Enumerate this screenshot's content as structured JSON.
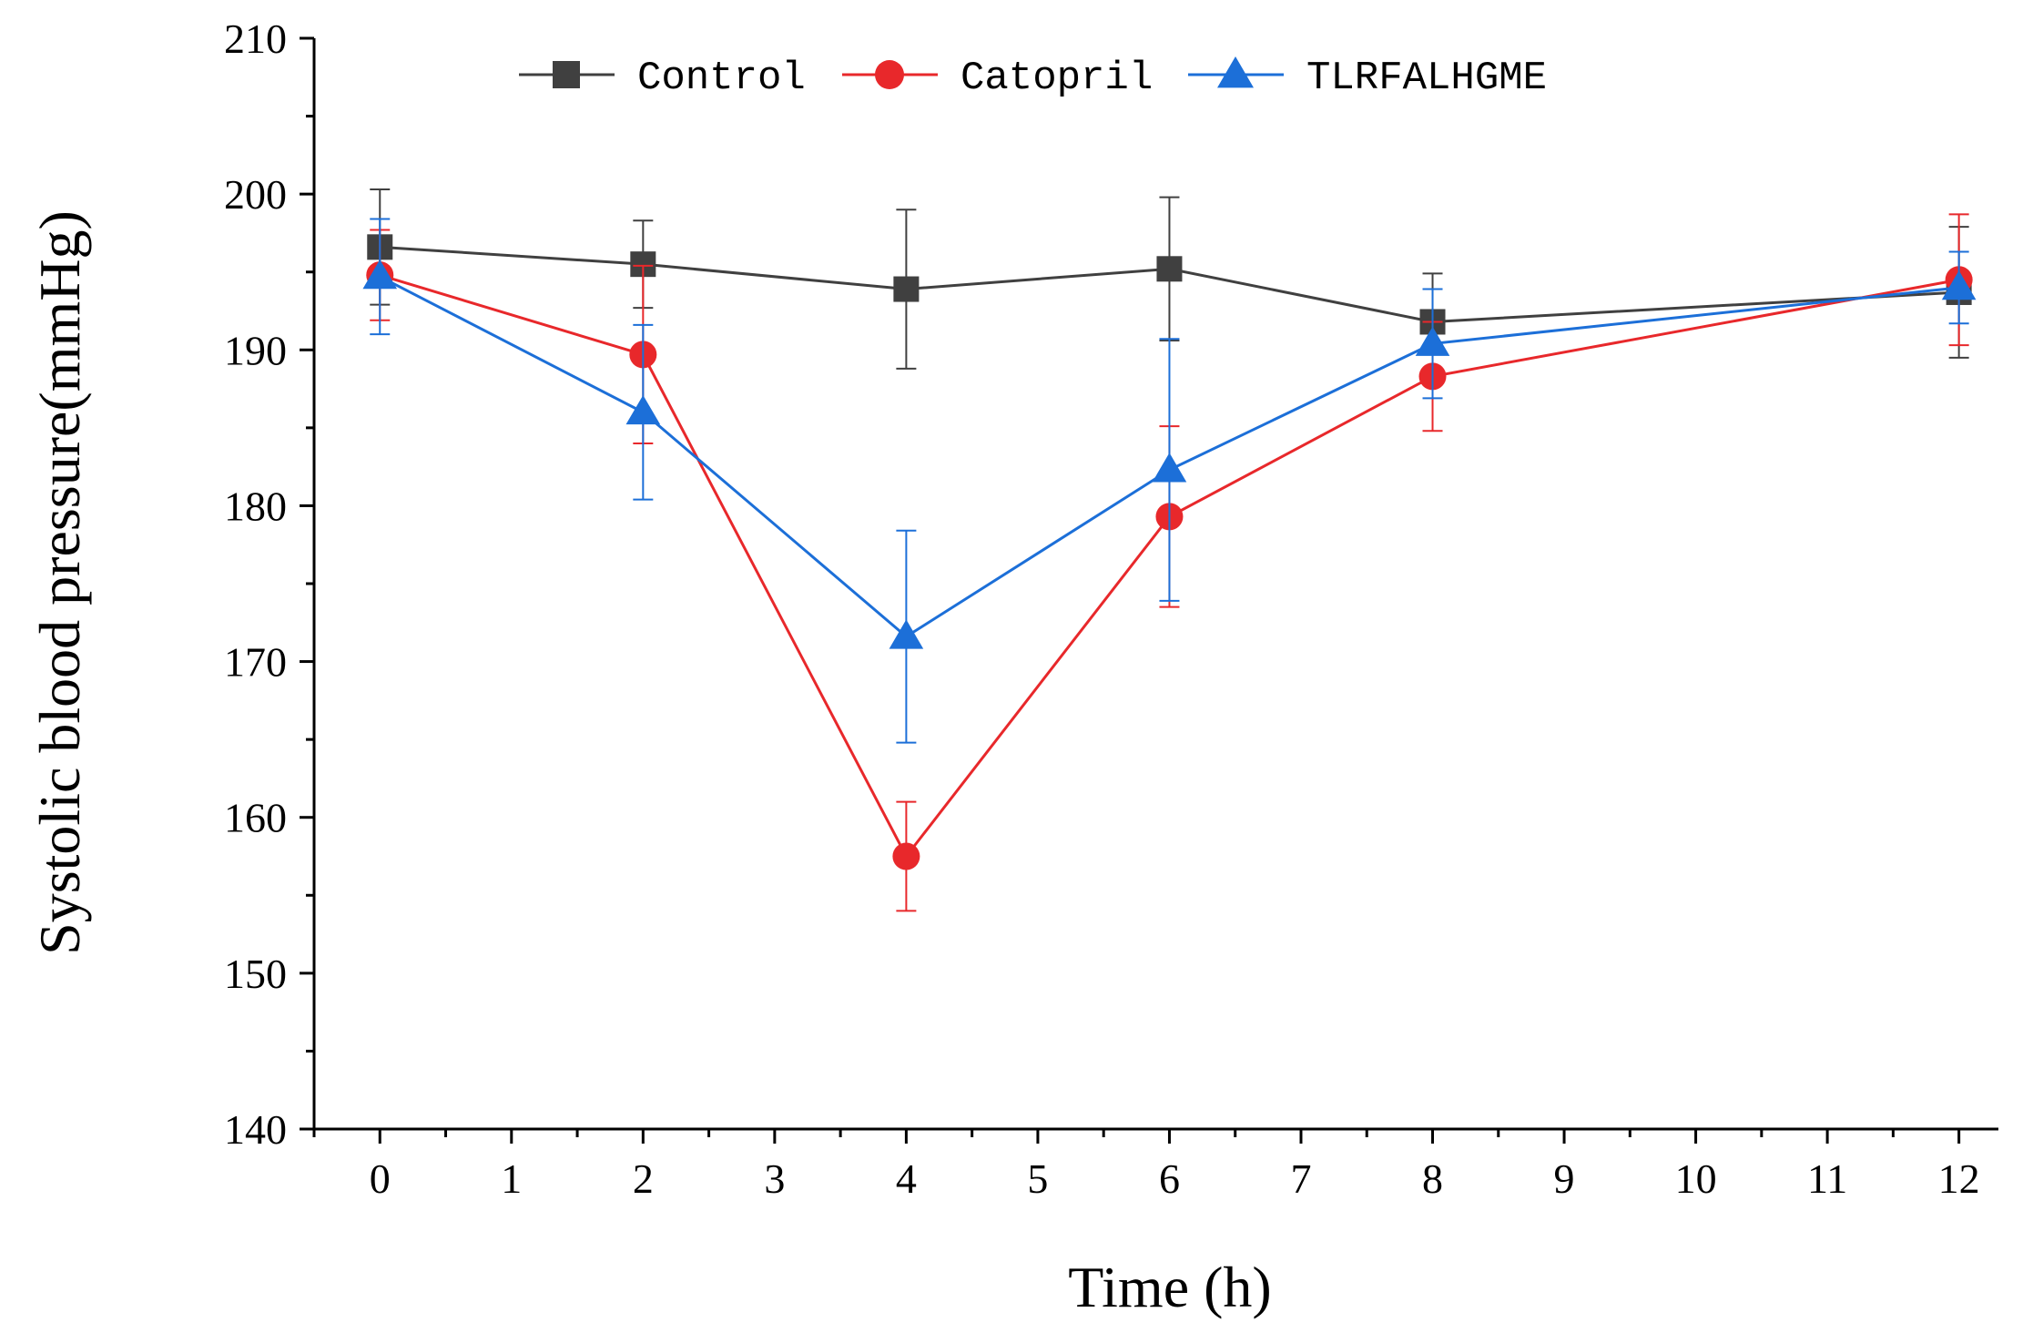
{
  "chart_data": {
    "type": "line",
    "title": "",
    "xlabel": "Time (h)",
    "ylabel": "Systolic blood pressure(mmHg)",
    "xlim": [
      -0.5,
      12.3
    ],
    "ylim": [
      140,
      210
    ],
    "x_ticks": [
      0,
      1,
      2,
      3,
      4,
      5,
      6,
      7,
      8,
      9,
      10,
      11,
      12
    ],
    "x_tick_labels": [
      "0",
      "1",
      "2",
      "3",
      "4",
      "5",
      "6",
      "7",
      "8",
      "9",
      "10",
      "11",
      "12"
    ],
    "y_ticks": [
      140,
      150,
      160,
      170,
      180,
      190,
      200,
      210
    ],
    "y_tick_labels": [
      "140",
      "150",
      "160",
      "170",
      "180",
      "190",
      "200",
      "210"
    ],
    "grid": false,
    "legend_position": "top",
    "series": [
      {
        "name": "Control",
        "color": "#404040",
        "marker": "square",
        "x": [
          0,
          2,
          4,
          6,
          8,
          12
        ],
        "values": [
          196.6,
          195.5,
          193.9,
          195.2,
          191.8,
          193.7
        ],
        "errors": [
          3.7,
          2.8,
          5.1,
          4.6,
          3.1,
          4.2
        ]
      },
      {
        "name": "Catopril",
        "color": "#e8282b",
        "marker": "circle",
        "x": [
          0,
          2,
          4,
          6,
          8,
          12
        ],
        "values": [
          194.8,
          189.7,
          157.5,
          179.3,
          188.3,
          194.5
        ],
        "errors": [
          2.9,
          5.7,
          3.5,
          5.8,
          3.5,
          4.2
        ]
      },
      {
        "name": "TLRFALHGME",
        "color": "#1c6fd8",
        "marker": "triangle",
        "x": [
          0,
          2,
          4,
          6,
          8,
          12
        ],
        "values": [
          194.7,
          186.0,
          171.6,
          182.3,
          190.4,
          194.0
        ],
        "errors": [
          3.7,
          5.6,
          6.8,
          8.4,
          3.5,
          2.3
        ]
      }
    ]
  }
}
